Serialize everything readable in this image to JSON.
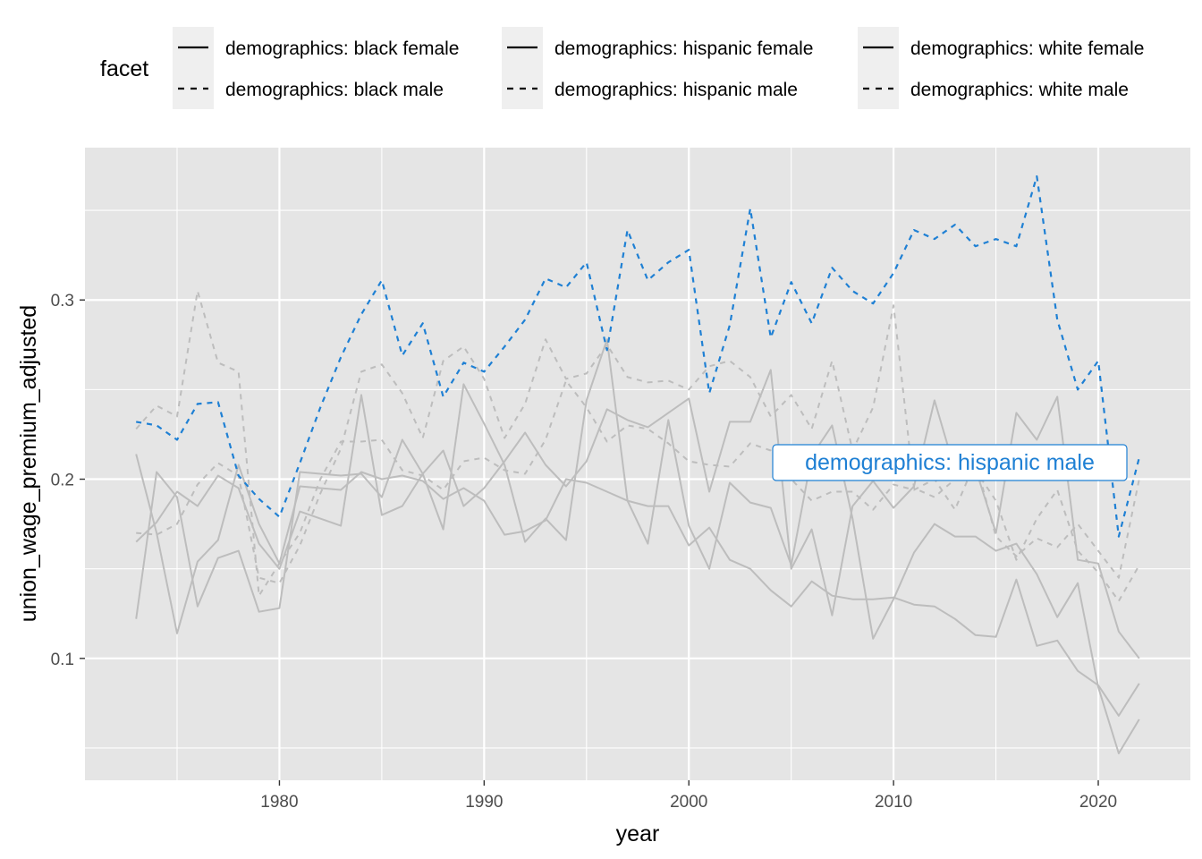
{
  "chart_data": {
    "type": "line",
    "xlabel": "year",
    "ylabel": "union_wage_premium_adjusted",
    "xlim": [
      1970.5,
      2024.5
    ],
    "ylim": [
      0.032,
      0.385
    ],
    "x_ticks": [
      1980,
      1990,
      2000,
      2010,
      2020
    ],
    "x_tick_labels": [
      "1980",
      "1990",
      "2000",
      "2010",
      "2020"
    ],
    "y_ticks": [
      0.1,
      0.2,
      0.3
    ],
    "y_tick_labels": [
      "0.1",
      "0.2",
      "0.3"
    ],
    "grid": true,
    "legend": {
      "title": "facet",
      "placement": "top",
      "entries": [
        {
          "label": "demographics: black female",
          "linetype": "solid"
        },
        {
          "label": "demographics: black male",
          "linetype": "dashed"
        },
        {
          "label": "demographics: hispanic female",
          "linetype": "solid"
        },
        {
          "label": "demographics: hispanic male",
          "linetype": "dashed"
        },
        {
          "label": "demographics: white female",
          "linetype": "solid"
        },
        {
          "label": "demographics: white male",
          "linetype": "dashed"
        }
      ]
    },
    "highlight": {
      "series": "demographics: hispanic male",
      "label": "demographics: hispanic male",
      "color": "#1f80d4"
    },
    "colors": {
      "background_series": "#bdbdbd",
      "highlight": "#1f80d4",
      "panel": "#e5e5e5",
      "grid": "#ffffff"
    },
    "x": [
      1973,
      1974,
      1975,
      1976,
      1977,
      1978,
      1979,
      1980,
      1981,
      1982,
      1983,
      1984,
      1985,
      1986,
      1987,
      1988,
      1989,
      1990,
      1991,
      1992,
      1993,
      1994,
      1995,
      1996,
      1997,
      1998,
      1999,
      2000,
      2001,
      2002,
      2003,
      2004,
      2005,
      2006,
      2007,
      2008,
      2009,
      2010,
      2011,
      2012,
      2013,
      2014,
      2015,
      2016,
      2017,
      2018,
      2019,
      2020,
      2021,
      2022
    ],
    "series": [
      {
        "name": "demographics: hispanic male",
        "linetype": "dashed",
        "highlight": true,
        "values": [
          0.232,
          0.23,
          0.222,
          0.242,
          0.243,
          0.202,
          0.189,
          0.179,
          0.209,
          0.24,
          0.268,
          0.292,
          0.311,
          0.269,
          0.287,
          0.246,
          0.265,
          0.26,
          0.274,
          0.289,
          0.312,
          0.307,
          0.321,
          0.272,
          0.339,
          0.311,
          0.321,
          0.328,
          0.248,
          0.286,
          0.351,
          0.279,
          0.31,
          0.287,
          0.318,
          0.305,
          0.298,
          0.315,
          0.339,
          0.334,
          0.342,
          0.33,
          0.334,
          0.33,
          0.369,
          0.289,
          0.25,
          0.266,
          0.168,
          0.212
        ]
      },
      {
        "name": "demographics: black male",
        "linetype": "dashed",
        "values": [
          0.17,
          0.169,
          0.175,
          0.197,
          0.209,
          0.202,
          0.145,
          0.142,
          0.163,
          0.192,
          0.217,
          0.26,
          0.264,
          0.248,
          0.223,
          0.266,
          0.274,
          0.256,
          0.223,
          0.242,
          0.278,
          0.256,
          0.259,
          0.275,
          0.257,
          0.254,
          0.255,
          0.25,
          0.263,
          0.266,
          0.257,
          0.235,
          0.247,
          0.228,
          0.266,
          0.216,
          0.24,
          0.297,
          0.195,
          0.19,
          0.2,
          0.205,
          0.188,
          0.155,
          0.178,
          0.194,
          0.16,
          0.148,
          0.132,
          0.152
        ]
      },
      {
        "name": "demographics: white male",
        "linetype": "dashed",
        "values": [
          0.228,
          0.241,
          0.235,
          0.305,
          0.265,
          0.26,
          0.135,
          0.153,
          0.17,
          0.2,
          0.221,
          0.221,
          0.222,
          0.205,
          0.202,
          0.194,
          0.21,
          0.212,
          0.205,
          0.203,
          0.222,
          0.255,
          0.24,
          0.221,
          0.23,
          0.228,
          0.22,
          0.21,
          0.208,
          0.207,
          0.22,
          0.216,
          0.2,
          0.188,
          0.193,
          0.193,
          0.183,
          0.197,
          0.194,
          0.2,
          0.183,
          0.21,
          0.168,
          0.157,
          0.167,
          0.162,
          0.175,
          0.16,
          0.145,
          0.2
        ]
      },
      {
        "name": "demographics: black female",
        "linetype": "solid",
        "values": [
          0.214,
          0.17,
          0.114,
          0.154,
          0.166,
          0.208,
          0.175,
          0.153,
          0.196,
          0.195,
          0.194,
          0.204,
          0.2,
          0.202,
          0.199,
          0.189,
          0.195,
          0.188,
          0.169,
          0.171,
          0.177,
          0.2,
          0.198,
          0.193,
          0.188,
          0.185,
          0.185,
          0.163,
          0.173,
          0.155,
          0.15,
          0.138,
          0.129,
          0.143,
          0.135,
          0.133,
          0.133,
          0.134,
          0.13,
          0.129,
          0.122,
          0.113,
          0.112,
          0.144,
          0.107,
          0.11,
          0.093,
          0.085,
          0.068,
          0.086
        ]
      },
      {
        "name": "demographics: hispanic female",
        "linetype": "solid",
        "values": [
          0.165,
          0.176,
          0.193,
          0.185,
          0.202,
          0.195,
          0.164,
          0.15,
          0.182,
          0.178,
          0.174,
          0.247,
          0.18,
          0.185,
          0.203,
          0.216,
          0.185,
          0.195,
          0.21,
          0.226,
          0.208,
          0.196,
          0.21,
          0.239,
          0.233,
          0.229,
          0.237,
          0.245,
          0.193,
          0.232,
          0.232,
          0.261,
          0.15,
          0.172,
          0.124,
          0.185,
          0.199,
          0.184,
          0.196,
          0.244,
          0.205,
          0.206,
          0.17,
          0.237,
          0.222,
          0.246,
          0.155,
          0.153,
          0.115,
          0.1
        ]
      },
      {
        "name": "demographics: white female",
        "linetype": "solid",
        "values": [
          0.122,
          0.204,
          0.19,
          0.129,
          0.156,
          0.16,
          0.126,
          0.128,
          0.204,
          0.203,
          0.202,
          0.203,
          0.19,
          0.222,
          0.203,
          0.172,
          0.253,
          0.231,
          0.208,
          0.165,
          0.178,
          0.166,
          0.244,
          0.278,
          0.188,
          0.164,
          0.233,
          0.174,
          0.15,
          0.198,
          0.187,
          0.184,
          0.152,
          0.213,
          0.23,
          0.178,
          0.111,
          0.133,
          0.159,
          0.175,
          0.168,
          0.168,
          0.16,
          0.164,
          0.147,
          0.123,
          0.142,
          0.084,
          0.047,
          0.066
        ]
      }
    ]
  }
}
